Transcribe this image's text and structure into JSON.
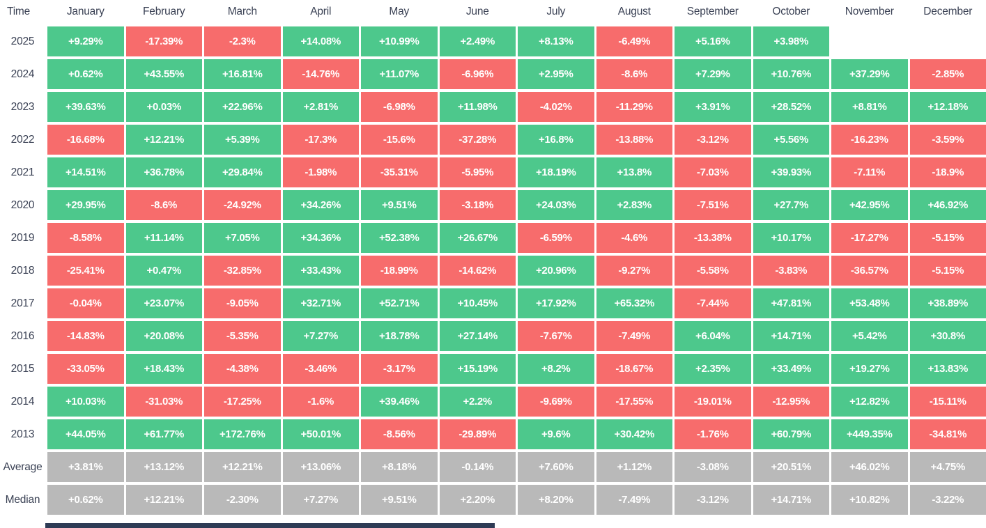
{
  "colors": {
    "positive": "#4dc88c",
    "negative": "#f76c6c",
    "summary": "#b9b9b9",
    "label_text": "#3a4154",
    "scrollbar": "#2e3b55"
  },
  "chart_data": {
    "type": "heatmap",
    "corner_label": "Time",
    "categories": [
      "January",
      "February",
      "March",
      "April",
      "May",
      "June",
      "July",
      "August",
      "September",
      "October",
      "November",
      "December"
    ],
    "rows": [
      {
        "label": "2025",
        "kind": "year",
        "cells": [
          "+9.29%",
          "-17.39%",
          "-2.3%",
          "+14.08%",
          "+10.99%",
          "+2.49%",
          "+8.13%",
          "-6.49%",
          "+5.16%",
          "+3.98%",
          null,
          null
        ]
      },
      {
        "label": "2024",
        "kind": "year",
        "cells": [
          "+0.62%",
          "+43.55%",
          "+16.81%",
          "-14.76%",
          "+11.07%",
          "-6.96%",
          "+2.95%",
          "-8.6%",
          "+7.29%",
          "+10.76%",
          "+37.29%",
          "-2.85%"
        ]
      },
      {
        "label": "2023",
        "kind": "year",
        "cells": [
          "+39.63%",
          "+0.03%",
          "+22.96%",
          "+2.81%",
          "-6.98%",
          "+11.98%",
          "-4.02%",
          "-11.29%",
          "+3.91%",
          "+28.52%",
          "+8.81%",
          "+12.18%"
        ]
      },
      {
        "label": "2022",
        "kind": "year",
        "cells": [
          "-16.68%",
          "+12.21%",
          "+5.39%",
          "-17.3%",
          "-15.6%",
          "-37.28%",
          "+16.8%",
          "-13.88%",
          "-3.12%",
          "+5.56%",
          "-16.23%",
          "-3.59%"
        ]
      },
      {
        "label": "2021",
        "kind": "year",
        "cells": [
          "+14.51%",
          "+36.78%",
          "+29.84%",
          "-1.98%",
          "-35.31%",
          "-5.95%",
          "+18.19%",
          "+13.8%",
          "-7.03%",
          "+39.93%",
          "-7.11%",
          "-18.9%"
        ]
      },
      {
        "label": "2020",
        "kind": "year",
        "cells": [
          "+29.95%",
          "-8.6%",
          "-24.92%",
          "+34.26%",
          "+9.51%",
          "-3.18%",
          "+24.03%",
          "+2.83%",
          "-7.51%",
          "+27.7%",
          "+42.95%",
          "+46.92%"
        ]
      },
      {
        "label": "2019",
        "kind": "year",
        "cells": [
          "-8.58%",
          "+11.14%",
          "+7.05%",
          "+34.36%",
          "+52.38%",
          "+26.67%",
          "-6.59%",
          "-4.6%",
          "-13.38%",
          "+10.17%",
          "-17.27%",
          "-5.15%"
        ]
      },
      {
        "label": "2018",
        "kind": "year",
        "cells": [
          "-25.41%",
          "+0.47%",
          "-32.85%",
          "+33.43%",
          "-18.99%",
          "-14.62%",
          "+20.96%",
          "-9.27%",
          "-5.58%",
          "-3.83%",
          "-36.57%",
          "-5.15%"
        ]
      },
      {
        "label": "2017",
        "kind": "year",
        "cells": [
          "-0.04%",
          "+23.07%",
          "-9.05%",
          "+32.71%",
          "+52.71%",
          "+10.45%",
          "+17.92%",
          "+65.32%",
          "-7.44%",
          "+47.81%",
          "+53.48%",
          "+38.89%"
        ]
      },
      {
        "label": "2016",
        "kind": "year",
        "cells": [
          "-14.83%",
          "+20.08%",
          "-5.35%",
          "+7.27%",
          "+18.78%",
          "+27.14%",
          "-7.67%",
          "-7.49%",
          "+6.04%",
          "+14.71%",
          "+5.42%",
          "+30.8%"
        ]
      },
      {
        "label": "2015",
        "kind": "year",
        "cells": [
          "-33.05%",
          "+18.43%",
          "-4.38%",
          "-3.46%",
          "-3.17%",
          "+15.19%",
          "+8.2%",
          "-18.67%",
          "+2.35%",
          "+33.49%",
          "+19.27%",
          "+13.83%"
        ]
      },
      {
        "label": "2014",
        "kind": "year",
        "cells": [
          "+10.03%",
          "-31.03%",
          "-17.25%",
          "-1.6%",
          "+39.46%",
          "+2.2%",
          "-9.69%",
          "-17.55%",
          "-19.01%",
          "-12.95%",
          "+12.82%",
          "-15.11%"
        ]
      },
      {
        "label": "2013",
        "kind": "year",
        "cells": [
          "+44.05%",
          "+61.77%",
          "+172.76%",
          "+50.01%",
          "-8.56%",
          "-29.89%",
          "+9.6%",
          "+30.42%",
          "-1.76%",
          "+60.79%",
          "+449.35%",
          "-34.81%"
        ]
      },
      {
        "label": "Average",
        "kind": "summary",
        "cells": [
          "+3.81%",
          "+13.12%",
          "+12.21%",
          "+13.06%",
          "+8.18%",
          "-0.14%",
          "+7.60%",
          "+1.12%",
          "-3.08%",
          "+20.51%",
          "+46.02%",
          "+4.75%"
        ]
      },
      {
        "label": "Median",
        "kind": "summary",
        "cells": [
          "+0.62%",
          "+12.21%",
          "-2.30%",
          "+7.27%",
          "+9.51%",
          "+2.20%",
          "+8.20%",
          "-7.49%",
          "-3.12%",
          "+14.71%",
          "+10.82%",
          "-3.22%"
        ]
      }
    ]
  }
}
